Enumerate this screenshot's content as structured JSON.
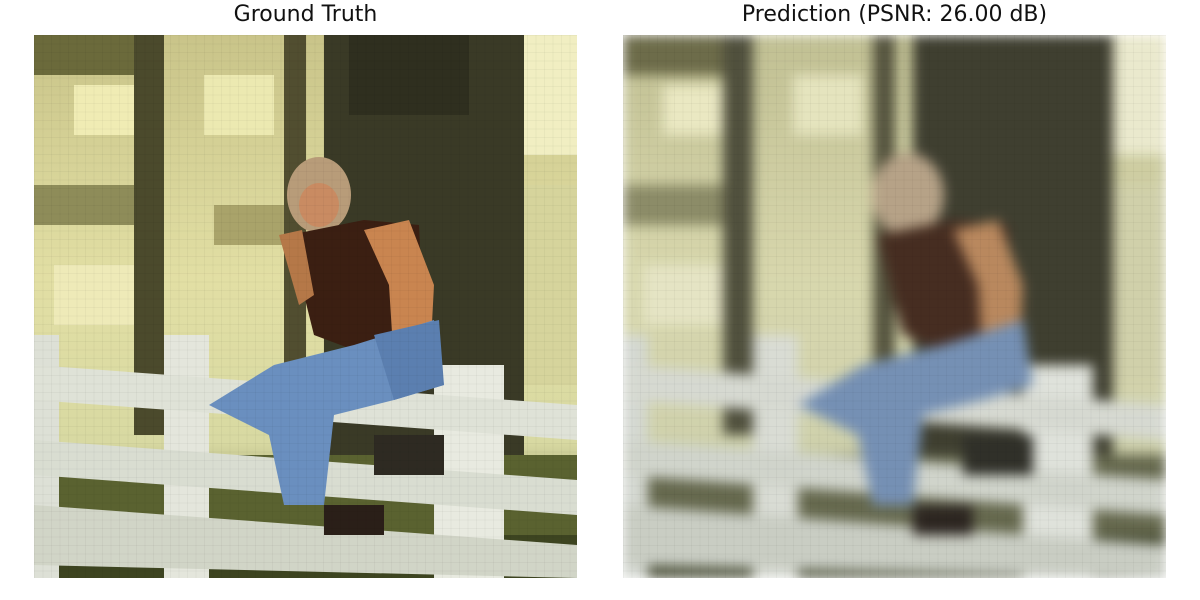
{
  "panels": {
    "left": {
      "title": "Ground Truth"
    },
    "right": {
      "title": "Prediction (PSNR: 26.00 dB)"
    }
  },
  "colors": {
    "background": "#ffffff",
    "title": "#111111",
    "foliage_light": "#d9d9a0",
    "foliage_bright": "#eeeebb",
    "tree_trunk": "#3a3a26",
    "fence": "#e4e6dc",
    "shirt": "#3b1f12",
    "skin": "#c98550",
    "jeans": "#6a8fbf",
    "grass": "#4f5a2a"
  }
}
